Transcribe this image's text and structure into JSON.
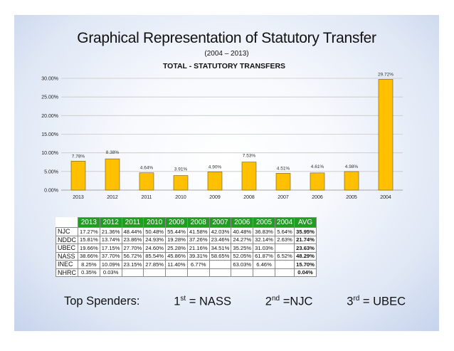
{
  "slide": {
    "title": "Graphical Representation of Statutory Transfer",
    "subtitle": "(2004 – 2013)"
  },
  "chart_data": {
    "type": "bar",
    "title": "TOTAL - STATUTORY TRANSFERS",
    "categories": [
      "2013",
      "2012",
      "2011",
      "2010",
      "2009",
      "2008",
      "2007",
      "2006",
      "2005",
      "2004"
    ],
    "values": [
      7.78,
      8.38,
      4.64,
      3.91,
      4.9,
      7.53,
      4.51,
      4.61,
      4.98,
      29.72
    ],
    "data_labels": [
      "7.78%",
      "8.38%",
      "4.64%",
      "3.91%",
      "4.90%",
      "7.53%",
      "4.51%",
      "4.61%",
      "4.98%",
      "29.72%"
    ],
    "ylim": [
      0,
      30
    ],
    "yticks": [
      0,
      5,
      10,
      15,
      20,
      25,
      30
    ],
    "ytick_labels": [
      "0.00%",
      "5.00%",
      "10.00%",
      "15.00%",
      "20.00%",
      "25.00%",
      "30.00%"
    ],
    "xlabel": "",
    "ylabel": "",
    "grid": true,
    "bar_color": "#ffc000",
    "bar_edge_color": "#6b5a1e"
  },
  "table": {
    "headers": [
      "2013",
      "2012",
      "2011",
      "2010",
      "2009",
      "2008",
      "2007",
      "2006",
      "2005",
      "2004",
      "AVG"
    ],
    "rows": [
      {
        "name": "NJC",
        "cells": [
          "17.27%",
          "21.36%",
          "48.44%",
          "50.48%",
          "55.44%",
          "41.58%",
          "42.03%",
          "40.48%",
          "36.83%",
          "5.64%",
          "35.95%"
        ]
      },
      {
        "name": "NDDC",
        "cells": [
          "15.81%",
          "13.74%",
          "23.86%",
          "24.93%",
          "19.28%",
          "37.26%",
          "23.46%",
          "24.27%",
          "32.14%",
          "2.63%",
          "21.74%"
        ]
      },
      {
        "name": "UBEC",
        "cells": [
          "19.66%",
          "17.15%",
          "27.70%",
          "24.60%",
          "25.28%",
          "21.16%",
          "34.51%",
          "35.25%",
          "31.03%",
          "",
          "23.63%"
        ]
      },
      {
        "name": "NASS",
        "cells": [
          "38.66%",
          "37.70%",
          "56.72%",
          "85.54%",
          "45.86%",
          "39.31%",
          "58.65%",
          "52.05%",
          "61.87%",
          "6.52%",
          "48.29%"
        ]
      },
      {
        "name": "INEC",
        "cells": [
          "8.25%",
          "10.09%",
          "23.15%",
          "27.85%",
          "11.40%",
          "6.77%",
          "",
          "63.03%",
          "6.46%",
          "",
          "15.70%"
        ]
      },
      {
        "name": "NHRC",
        "cells": [
          "0.35%",
          "0.03%",
          "",
          "",
          "",
          "",
          "",
          "",
          "",
          "",
          "0.04%"
        ]
      }
    ]
  },
  "footer": {
    "prefix": "Top Spenders:",
    "first_ord": "1",
    "first_sup": "st",
    "first_val": "= NASS",
    "second_ord": "2",
    "second_sup": "nd",
    "second_val": "=NJC",
    "third_ord": "3",
    "third_sup": "rd",
    "third_val": "= UBEC"
  }
}
